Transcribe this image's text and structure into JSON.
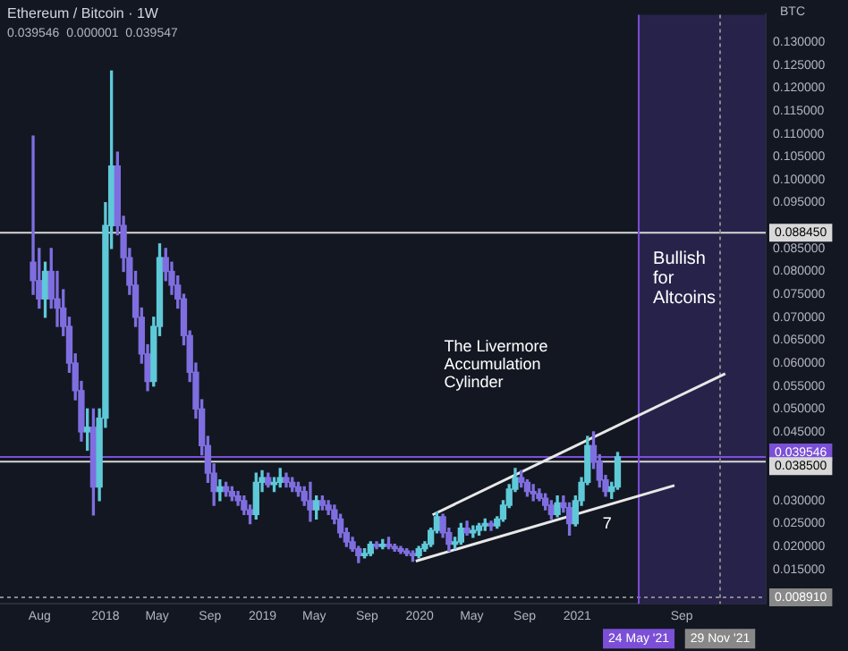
{
  "chart_data": {
    "type": "candlestick",
    "title": "Ethereum / Bitcoin · 1W",
    "subtitle": "0.039546  0.000001  0.039547",
    "ylabel": "BTC",
    "x": [
      "2017-07-17",
      "2017-07-31",
      "2017-08-14",
      "2017-08-28",
      "2017-09-11",
      "2017-09-25",
      "2017-10-09",
      "2017-10-23",
      "2017-11-06",
      "2017-11-20",
      "2017-12-04",
      "2017-12-18",
      "2018-01-01",
      "2018-01-15",
      "2018-01-29",
      "2018-02-12",
      "2018-02-26",
      "2018-03-12",
      "2018-03-26",
      "2018-04-09",
      "2018-04-23",
      "2018-05-07",
      "2018-05-21",
      "2018-06-04",
      "2018-06-18",
      "2018-07-02",
      "2018-07-16",
      "2018-07-30",
      "2018-08-13",
      "2018-08-27",
      "2018-09-10",
      "2018-09-24",
      "2018-10-08",
      "2018-10-22",
      "2018-11-05",
      "2018-11-19",
      "2018-12-03",
      "2018-12-17",
      "2018-12-31",
      "2019-01-14",
      "2019-01-28",
      "2019-02-11",
      "2019-02-25",
      "2019-03-11",
      "2019-03-25",
      "2019-04-08",
      "2019-04-22",
      "2019-05-06",
      "2019-05-20",
      "2019-06-03",
      "2019-06-17",
      "2019-07-01",
      "2019-07-15",
      "2019-07-29",
      "2019-08-12",
      "2019-08-26",
      "2019-09-09",
      "2019-09-23",
      "2019-10-07",
      "2019-10-21",
      "2019-11-04",
      "2019-11-18",
      "2019-12-02",
      "2019-12-16",
      "2019-12-30",
      "2020-01-13",
      "2020-01-27",
      "2020-02-10",
      "2020-02-24",
      "2020-03-09",
      "2020-03-23",
      "2020-04-06",
      "2020-04-20",
      "2020-05-04",
      "2020-05-18",
      "2020-06-01",
      "2020-06-15",
      "2020-06-29",
      "2020-07-13",
      "2020-07-27",
      "2020-08-10",
      "2020-08-24",
      "2020-09-07",
      "2020-09-21",
      "2020-10-05",
      "2020-10-19",
      "2020-11-02",
      "2020-11-16",
      "2020-11-30",
      "2020-12-14",
      "2020-12-28",
      "2021-01-11",
      "2021-01-25",
      "2021-02-08",
      "2021-02-22",
      "2021-03-08",
      "2021-03-22",
      "2021-04-05"
    ],
    "ohlc": [
      [
        0.082,
        0.1095,
        0.075,
        0.078
      ],
      [
        0.078,
        0.085,
        0.072,
        0.074
      ],
      [
        0.074,
        0.082,
        0.07,
        0.08
      ],
      [
        0.08,
        0.085,
        0.072,
        0.074
      ],
      [
        0.074,
        0.08,
        0.068,
        0.072
      ],
      [
        0.072,
        0.076,
        0.066,
        0.068
      ],
      [
        0.068,
        0.07,
        0.058,
        0.06
      ],
      [
        0.06,
        0.062,
        0.052,
        0.054
      ],
      [
        0.054,
        0.056,
        0.043,
        0.045
      ],
      [
        0.045,
        0.05,
        0.041,
        0.046
      ],
      [
        0.046,
        0.05,
        0.0269,
        0.033
      ],
      [
        0.033,
        0.05,
        0.03,
        0.048
      ],
      [
        0.048,
        0.095,
        0.046,
        0.09
      ],
      [
        0.09,
        0.1237,
        0.085,
        0.103
      ],
      [
        0.103,
        0.106,
        0.088,
        0.09
      ],
      [
        0.09,
        0.092,
        0.08,
        0.083
      ],
      [
        0.083,
        0.085,
        0.075,
        0.077
      ],
      [
        0.077,
        0.08,
        0.068,
        0.07
      ],
      [
        0.07,
        0.072,
        0.06,
        0.062
      ],
      [
        0.062,
        0.064,
        0.054,
        0.056
      ],
      [
        0.056,
        0.07,
        0.055,
        0.068
      ],
      [
        0.068,
        0.086,
        0.066,
        0.083
      ],
      [
        0.083,
        0.085,
        0.078,
        0.08
      ],
      [
        0.08,
        0.082,
        0.075,
        0.077
      ],
      [
        0.077,
        0.079,
        0.072,
        0.074
      ],
      [
        0.074,
        0.075,
        0.064,
        0.066
      ],
      [
        0.066,
        0.067,
        0.056,
        0.058
      ],
      [
        0.058,
        0.06,
        0.048,
        0.05
      ],
      [
        0.05,
        0.052,
        0.04,
        0.042
      ],
      [
        0.042,
        0.044,
        0.034,
        0.036
      ],
      [
        0.036,
        0.038,
        0.029,
        0.032
      ],
      [
        0.032,
        0.0345,
        0.03,
        0.033
      ],
      [
        0.033,
        0.034,
        0.031,
        0.032
      ],
      [
        0.032,
        0.033,
        0.03,
        0.031
      ],
      [
        0.031,
        0.032,
        0.029,
        0.03
      ],
      [
        0.03,
        0.031,
        0.027,
        0.028
      ],
      [
        0.028,
        0.029,
        0.025,
        0.027
      ],
      [
        0.027,
        0.036,
        0.026,
        0.034
      ],
      [
        0.034,
        0.0365,
        0.032,
        0.035
      ],
      [
        0.035,
        0.036,
        0.033,
        0.0335
      ],
      [
        0.0335,
        0.035,
        0.032,
        0.034
      ],
      [
        0.034,
        0.037,
        0.033,
        0.035
      ],
      [
        0.035,
        0.036,
        0.033,
        0.034
      ],
      [
        0.034,
        0.035,
        0.032,
        0.033
      ],
      [
        0.033,
        0.034,
        0.031,
        0.032
      ],
      [
        0.032,
        0.033,
        0.029,
        0.03
      ],
      [
        0.03,
        0.034,
        0.0255,
        0.028
      ],
      [
        0.028,
        0.031,
        0.026,
        0.03
      ],
      [
        0.03,
        0.031,
        0.028,
        0.029
      ],
      [
        0.029,
        0.03,
        0.027,
        0.028
      ],
      [
        0.028,
        0.029,
        0.025,
        0.026
      ],
      [
        0.026,
        0.027,
        0.022,
        0.023
      ],
      [
        0.023,
        0.024,
        0.02,
        0.021
      ],
      [
        0.021,
        0.022,
        0.019,
        0.0195
      ],
      [
        0.0195,
        0.02,
        0.0165,
        0.018
      ],
      [
        0.018,
        0.0195,
        0.0175,
        0.0185
      ],
      [
        0.0185,
        0.021,
        0.018,
        0.0205
      ],
      [
        0.0205,
        0.021,
        0.0195,
        0.02
      ],
      [
        0.02,
        0.0215,
        0.0195,
        0.0205
      ],
      [
        0.0205,
        0.022,
        0.0195,
        0.02
      ],
      [
        0.02,
        0.0205,
        0.019,
        0.0195
      ],
      [
        0.0195,
        0.02,
        0.0185,
        0.019
      ],
      [
        0.019,
        0.0195,
        0.018,
        0.0185
      ],
      [
        0.0185,
        0.019,
        0.0168,
        0.018
      ],
      [
        0.018,
        0.02,
        0.0175,
        0.0195
      ],
      [
        0.0195,
        0.021,
        0.019,
        0.0205
      ],
      [
        0.0205,
        0.024,
        0.02,
        0.0235
      ],
      [
        0.0235,
        0.0275,
        0.023,
        0.0265
      ],
      [
        0.0265,
        0.027,
        0.022,
        0.023
      ],
      [
        0.023,
        0.024,
        0.019,
        0.0205
      ],
      [
        0.0205,
        0.022,
        0.0195,
        0.021
      ],
      [
        0.021,
        0.025,
        0.0205,
        0.024
      ],
      [
        0.024,
        0.0255,
        0.0225,
        0.023
      ],
      [
        0.023,
        0.0245,
        0.022,
        0.0235
      ],
      [
        0.0235,
        0.025,
        0.0225,
        0.0245
      ],
      [
        0.0245,
        0.026,
        0.0235,
        0.025
      ],
      [
        0.025,
        0.0255,
        0.0235,
        0.0245
      ],
      [
        0.0245,
        0.0265,
        0.024,
        0.026
      ],
      [
        0.026,
        0.03,
        0.0255,
        0.029
      ],
      [
        0.029,
        0.0335,
        0.0285,
        0.0325
      ],
      [
        0.0325,
        0.037,
        0.032,
        0.035
      ],
      [
        0.035,
        0.0365,
        0.033,
        0.034
      ],
      [
        0.034,
        0.0345,
        0.031,
        0.032
      ],
      [
        0.032,
        0.0335,
        0.03,
        0.0315
      ],
      [
        0.0315,
        0.0325,
        0.03,
        0.0305
      ],
      [
        0.0305,
        0.0315,
        0.028,
        0.029
      ],
      [
        0.029,
        0.03,
        0.026,
        0.027
      ],
      [
        0.027,
        0.031,
        0.0265,
        0.0295
      ],
      [
        0.0295,
        0.031,
        0.0275,
        0.0285
      ],
      [
        0.0285,
        0.0295,
        0.0225,
        0.025
      ],
      [
        0.025,
        0.031,
        0.0245,
        0.03
      ],
      [
        0.03,
        0.035,
        0.029,
        0.034
      ],
      [
        0.034,
        0.044,
        0.0335,
        0.042
      ],
      [
        0.042,
        0.045,
        0.037,
        0.0385
      ],
      [
        0.0385,
        0.04,
        0.033,
        0.0345
      ],
      [
        0.0345,
        0.0355,
        0.031,
        0.032
      ],
      [
        0.032,
        0.034,
        0.0305,
        0.033
      ],
      [
        0.033,
        0.0405,
        0.0325,
        0.03954
      ]
    ],
    "colors": [
      "#7f6ee0",
      "#7f6ee0",
      "#5fc9d8",
      "#7f6ee0",
      "#7f6ee0",
      "#7f6ee0",
      "#7f6ee0",
      "#7f6ee0",
      "#7f6ee0",
      "#5fc9d8",
      "#7f6ee0",
      "#5fc9d8",
      "#5fc9d8",
      "#5fc9d8",
      "#7f6ee0",
      "#7f6ee0",
      "#7f6ee0",
      "#7f6ee0",
      "#7f6ee0",
      "#7f6ee0",
      "#5fc9d8",
      "#5fc9d8",
      "#7f6ee0",
      "#7f6ee0",
      "#7f6ee0",
      "#7f6ee0",
      "#7f6ee0",
      "#7f6ee0",
      "#7f6ee0",
      "#7f6ee0",
      "#7f6ee0",
      "#5fc9d8",
      "#7f6ee0",
      "#7f6ee0",
      "#7f6ee0",
      "#7f6ee0",
      "#7f6ee0",
      "#5fc9d8",
      "#5fc9d8",
      "#7f6ee0",
      "#5fc9d8",
      "#5fc9d8",
      "#7f6ee0",
      "#7f6ee0",
      "#7f6ee0",
      "#7f6ee0",
      "#7f6ee0",
      "#5fc9d8",
      "#7f6ee0",
      "#7f6ee0",
      "#7f6ee0",
      "#7f6ee0",
      "#7f6ee0",
      "#7f6ee0",
      "#7f6ee0",
      "#5fc9d8",
      "#5fc9d8",
      "#7f6ee0",
      "#5fc9d8",
      "#7f6ee0",
      "#7f6ee0",
      "#7f6ee0",
      "#7f6ee0",
      "#7f6ee0",
      "#5fc9d8",
      "#5fc9d8",
      "#5fc9d8",
      "#5fc9d8",
      "#7f6ee0",
      "#7f6ee0",
      "#5fc9d8",
      "#5fc9d8",
      "#7f6ee0",
      "#5fc9d8",
      "#5fc9d8",
      "#5fc9d8",
      "#7f6ee0",
      "#5fc9d8",
      "#5fc9d8",
      "#5fc9d8",
      "#5fc9d8",
      "#7f6ee0",
      "#7f6ee0",
      "#7f6ee0",
      "#7f6ee0",
      "#7f6ee0",
      "#7f6ee0",
      "#5fc9d8",
      "#7f6ee0",
      "#7f6ee0",
      "#5fc9d8",
      "#5fc9d8",
      "#5fc9d8",
      "#7f6ee0",
      "#7f6ee0",
      "#7f6ee0",
      "#5fc9d8",
      "#5fc9d8"
    ],
    "series": [
      {
        "type": "line",
        "color": "#e8e8e8",
        "x": [
          "2020-01-31",
          "2021-12-11"
        ],
        "values": [
          0.0269,
          0.0577
        ]
      },
      {
        "type": "line",
        "color": "#e8e8e8",
        "x": [
          "2019-12-23",
          "2021-08-15"
        ],
        "values": [
          0.0168,
          0.0333
        ]
      }
    ],
    "xlim": [
      "2017-05-01",
      "2022-03-15"
    ],
    "xticks": [
      {
        "value": "2017-08-01",
        "label": "Aug"
      },
      {
        "value": "2018-01-01",
        "label": "2018"
      },
      {
        "value": "2018-05-01",
        "label": "May"
      },
      {
        "value": "2018-09-01",
        "label": "Sep"
      },
      {
        "value": "2019-01-01",
        "label": "2019"
      },
      {
        "value": "2019-05-01",
        "label": "May"
      },
      {
        "value": "2019-09-01",
        "label": "Sep"
      },
      {
        "value": "2020-01-01",
        "label": "2020"
      },
      {
        "value": "2020-05-01",
        "label": "May"
      },
      {
        "value": "2020-09-01",
        "label": "Sep"
      },
      {
        "value": "2021-01-01",
        "label": "2021"
      },
      {
        "value": "2021-09-01",
        "label": "Sep"
      }
    ],
    "ylim": [
      0.0075,
      0.136
    ],
    "yticks": [
      {
        "value": 0.015,
        "label": "0.015000"
      },
      {
        "value": 0.02,
        "label": "0.020000"
      },
      {
        "value": 0.025,
        "label": "0.025000"
      },
      {
        "value": 0.03,
        "label": "0.030000"
      },
      {
        "value": 0.045,
        "label": "0.045000"
      },
      {
        "value": 0.05,
        "label": "0.050000"
      },
      {
        "value": 0.055,
        "label": "0.055000"
      },
      {
        "value": 0.06,
        "label": "0.060000"
      },
      {
        "value": 0.065,
        "label": "0.065000"
      },
      {
        "value": 0.07,
        "label": "0.070000"
      },
      {
        "value": 0.075,
        "label": "0.075000"
      },
      {
        "value": 0.08,
        "label": "0.080000"
      },
      {
        "value": 0.085,
        "label": "0.085000"
      },
      {
        "value": 0.095,
        "label": "0.095000"
      },
      {
        "value": 0.1,
        "label": "0.100000"
      },
      {
        "value": 0.105,
        "label": "0.105000"
      },
      {
        "value": 0.11,
        "label": "0.110000"
      },
      {
        "value": 0.115,
        "label": "0.115000"
      },
      {
        "value": 0.12,
        "label": "0.120000"
      },
      {
        "value": 0.125,
        "label": "0.125000"
      },
      {
        "value": 0.13,
        "label": "0.130000"
      }
    ],
    "ref_lines": [
      {
        "axis": "y",
        "value": 0.08845,
        "label": "0.088450",
        "color": "#d8d8d8"
      },
      {
        "axis": "y",
        "value": 0.039546,
        "label": "0.039546",
        "color": "#7b4fd6"
      },
      {
        "axis": "y",
        "value": 0.0385,
        "label": "0.038500",
        "color": "#d8d8d8"
      },
      {
        "axis": "y",
        "value": 0.00891,
        "label": "0.008910",
        "color": "#888888",
        "line_style": "dotted"
      },
      {
        "axis": "x",
        "value": "2021-05-24",
        "label": "24 May '21",
        "color": "#7b4fd6"
      },
      {
        "axis": "x",
        "value": "2021-11-29",
        "label": "29 Nov '21",
        "color": "#888888",
        "line_style": "dotted"
      }
    ],
    "bands": [
      {
        "axis": "x",
        "from": "2021-05-24",
        "to": "2022-03-15",
        "label": "Bullish for Altcoins",
        "color": "#27224a"
      }
    ],
    "annotations": [
      "The Livermore Accumulation Cylinder",
      {
        "text": "7",
        "x": "2021-03-01",
        "y": 0.0266
      }
    ],
    "grid": false,
    "legend": false,
    "marker": "none",
    "line_style": "solid"
  }
}
